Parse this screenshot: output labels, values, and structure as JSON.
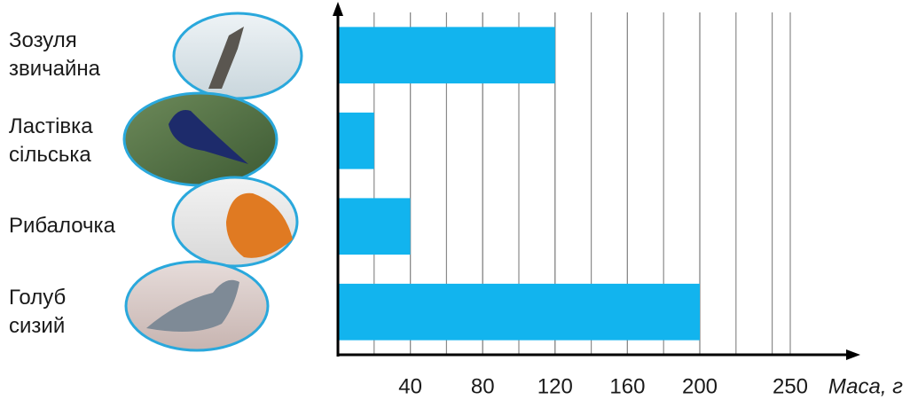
{
  "chart_data": {
    "type": "barh",
    "categories": [
      "Зозуля\nзвичайна",
      "Ластівка\nсільська",
      "Рибалочка",
      "Голуб\nсизий"
    ],
    "values": [
      120,
      20,
      40,
      200
    ],
    "color": "#12b4ee",
    "xlabel": "Маса, г",
    "xlim": [
      0,
      250
    ],
    "xticks": [
      40,
      80,
      120,
      160,
      200,
      250
    ],
    "grid": true,
    "grid_step": 20
  }
}
